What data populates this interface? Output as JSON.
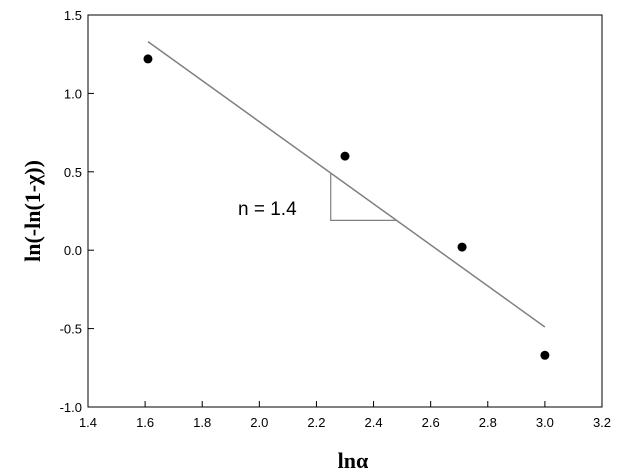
{
  "chart_data": {
    "type": "scatter",
    "xlabel": "lnα",
    "ylabel": "ln(-ln(1-χ))",
    "xlim": [
      1.4,
      3.2
    ],
    "ylim": [
      -1.0,
      1.5
    ],
    "x_ticks": [
      "1.4",
      "1.6",
      "1.8",
      "2.0",
      "2.2",
      "2.4",
      "2.6",
      "2.8",
      "3.0",
      "3.2"
    ],
    "y_ticks": [
      "-1.0",
      "-0.5",
      "0.0",
      "0.5",
      "1.0",
      "1.5"
    ],
    "points": [
      {
        "x": 1.61,
        "y": 1.22
      },
      {
        "x": 2.3,
        "y": 0.6
      },
      {
        "x": 2.71,
        "y": 0.02
      },
      {
        "x": 3.0,
        "y": -0.67
      }
    ],
    "fit_line": {
      "x": [
        1.61,
        3.0
      ],
      "y": [
        1.33,
        -0.49
      ]
    },
    "slope_triangle": {
      "x": [
        2.25,
        2.48
      ],
      "y": [
        0.49,
        0.19
      ]
    },
    "annotation": "n = 1.4",
    "grid": false,
    "colors": {
      "line": "#808080",
      "marker": "#000000",
      "axis": "#000000"
    }
  }
}
